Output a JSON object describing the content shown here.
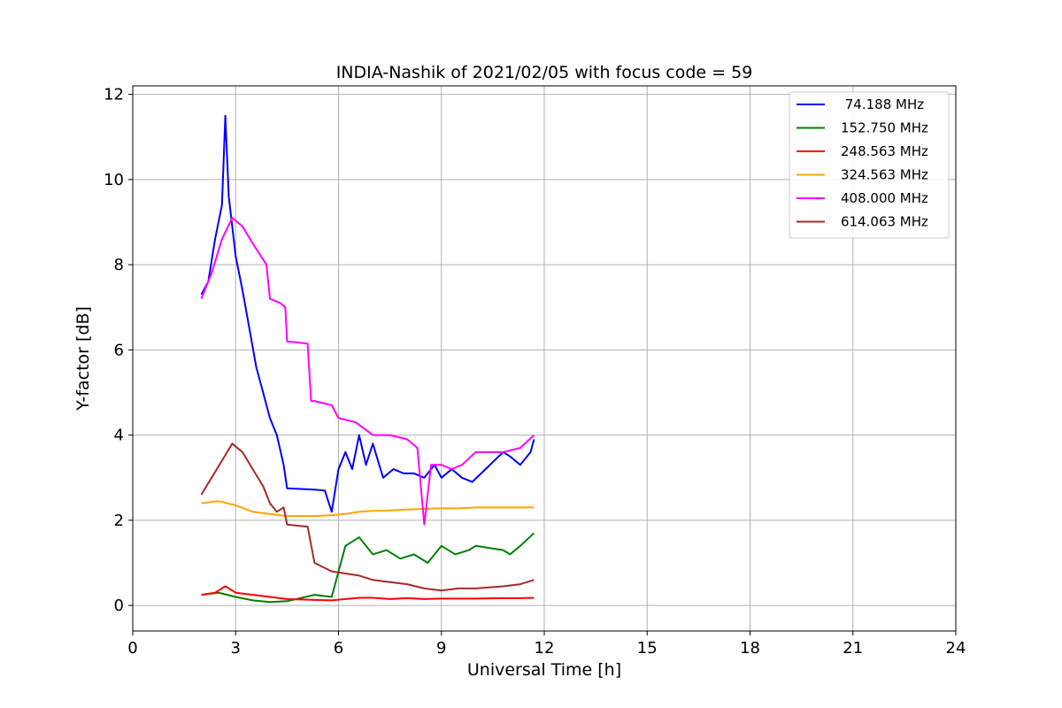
{
  "chart_data": {
    "type": "line",
    "title": "INDIA-Nashik of 2021/02/05 with focus code = 59",
    "xlabel": "Universal Time [h]",
    "ylabel": "Y-factor [dB]",
    "xlim": [
      0,
      24
    ],
    "ylim": [
      -0.6,
      12.2
    ],
    "xticks": [
      0,
      3,
      6,
      9,
      12,
      15,
      18,
      21,
      24
    ],
    "yticks": [
      0,
      2,
      4,
      6,
      8,
      10,
      12
    ],
    "grid": true,
    "legend_position": "top-right",
    "series": [
      {
        "name": " 74.188 MHz",
        "color": "#0000ff",
        "x": [
          2.0,
          2.2,
          2.4,
          2.6,
          2.7,
          2.8,
          3.0,
          3.2,
          3.4,
          3.6,
          3.8,
          4.0,
          4.2,
          4.4,
          4.5,
          5.3,
          5.6,
          5.8,
          6.0,
          6.2,
          6.4,
          6.6,
          6.8,
          7.0,
          7.3,
          7.6,
          7.9,
          8.2,
          8.5,
          8.8,
          9.0,
          9.3,
          9.6,
          9.9,
          10.8,
          11.0,
          11.3,
          11.6,
          11.7
        ],
        "y": [
          7.3,
          7.6,
          8.6,
          9.4,
          11.5,
          9.6,
          8.2,
          7.4,
          6.5,
          5.6,
          5.0,
          4.4,
          4.0,
          3.3,
          2.75,
          2.72,
          2.7,
          2.2,
          3.2,
          3.6,
          3.2,
          4.0,
          3.3,
          3.8,
          3.0,
          3.2,
          3.1,
          3.1,
          3.0,
          3.3,
          3.0,
          3.2,
          3.0,
          2.9,
          3.6,
          3.5,
          3.3,
          3.6,
          3.9
        ]
      },
      {
        "name": "152.750 MHz",
        "color": "#008000",
        "x": [
          2.0,
          2.5,
          3.0,
          3.5,
          4.0,
          4.5,
          5.3,
          5.8,
          6.2,
          6.6,
          7.0,
          7.4,
          7.8,
          8.2,
          8.6,
          9.0,
          9.4,
          9.8,
          10.0,
          10.8,
          11.0,
          11.3,
          11.7
        ],
        "y": [
          0.25,
          0.3,
          0.2,
          0.12,
          0.08,
          0.1,
          0.25,
          0.2,
          1.4,
          1.6,
          1.2,
          1.3,
          1.1,
          1.2,
          1.0,
          1.4,
          1.2,
          1.3,
          1.4,
          1.3,
          1.2,
          1.4,
          1.7
        ]
      },
      {
        "name": "248.563 MHz",
        "color": "#ff0000",
        "x": [
          2.0,
          2.4,
          2.7,
          3.0,
          3.5,
          4.0,
          4.5,
          5.3,
          5.8,
          6.2,
          6.6,
          7.0,
          7.5,
          8.0,
          8.5,
          9.0,
          9.5,
          10.0,
          10.8,
          11.3,
          11.7
        ],
        "y": [
          0.25,
          0.3,
          0.45,
          0.3,
          0.25,
          0.2,
          0.15,
          0.13,
          0.12,
          0.15,
          0.18,
          0.18,
          0.15,
          0.17,
          0.15,
          0.16,
          0.16,
          0.16,
          0.17,
          0.17,
          0.18
        ]
      },
      {
        "name": "324.563 MHz",
        "color": "#ffa500",
        "x": [
          2.0,
          2.5,
          3.0,
          3.5,
          4.0,
          4.5,
          5.3,
          5.8,
          6.2,
          6.6,
          7.0,
          7.5,
          8.0,
          8.5,
          9.0,
          9.5,
          10.0,
          10.8,
          11.3,
          11.7
        ],
        "y": [
          2.4,
          2.45,
          2.35,
          2.2,
          2.15,
          2.1,
          2.1,
          2.12,
          2.15,
          2.2,
          2.22,
          2.23,
          2.25,
          2.27,
          2.28,
          2.28,
          2.3,
          2.3,
          2.3,
          2.3
        ]
      },
      {
        "name": "408.000 MHz",
        "color": "#ff00ff",
        "x": [
          2.0,
          2.3,
          2.6,
          2.9,
          3.2,
          3.5,
          3.9,
          4.0,
          4.3,
          4.45,
          4.5,
          5.1,
          5.2,
          5.3,
          5.8,
          6.0,
          6.5,
          7.0,
          7.5,
          8.0,
          8.3,
          8.5,
          8.7,
          9.0,
          9.3,
          9.6,
          10.0,
          10.8,
          11.3,
          11.7
        ],
        "y": [
          7.2,
          7.8,
          8.6,
          9.1,
          8.9,
          8.5,
          8.0,
          7.2,
          7.1,
          7.0,
          6.2,
          6.15,
          4.8,
          4.8,
          4.7,
          4.4,
          4.3,
          4.0,
          4.0,
          3.9,
          3.7,
          1.9,
          3.3,
          3.3,
          3.2,
          3.3,
          3.6,
          3.6,
          3.7,
          4.0
        ]
      },
      {
        "name": "614.063 MHz",
        "color": "#a52a2a",
        "x": [
          2.0,
          2.3,
          2.6,
          2.9,
          3.2,
          3.5,
          3.8,
          4.0,
          4.2,
          4.4,
          4.5,
          5.1,
          5.3,
          5.8,
          6.2,
          6.6,
          7.0,
          7.5,
          8.0,
          8.5,
          9.0,
          9.5,
          10.0,
          10.8,
          11.3,
          11.7
        ],
        "y": [
          2.6,
          3.0,
          3.4,
          3.8,
          3.6,
          3.2,
          2.8,
          2.4,
          2.2,
          2.3,
          1.9,
          1.85,
          1.0,
          0.8,
          0.75,
          0.7,
          0.6,
          0.55,
          0.5,
          0.4,
          0.35,
          0.4,
          0.4,
          0.45,
          0.5,
          0.6
        ]
      }
    ]
  }
}
